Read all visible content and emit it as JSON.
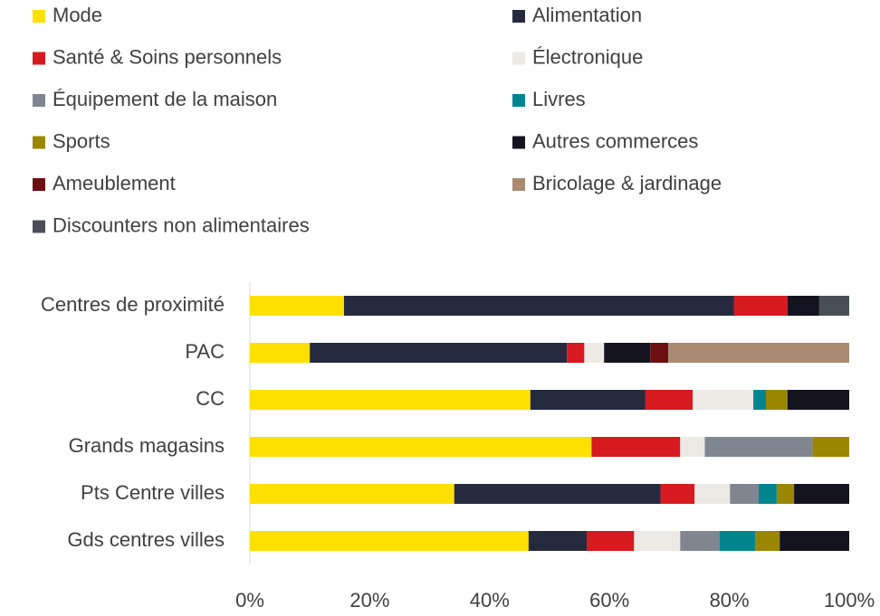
{
  "chart_data": {
    "type": "stacked_barh",
    "categories": [
      "Centres de proximité",
      "PAC",
      "CC",
      "Grands magasins",
      "Pts Centre villes",
      "Gds centres villes"
    ],
    "series": [
      {
        "name": "Mode",
        "color": "#ffe000",
        "values": [
          15.7,
          10.0,
          46.8,
          57.0,
          34.1,
          46.5
        ]
      },
      {
        "name": "Alimentation",
        "color": "#262a3f",
        "values": [
          65.1,
          42.9,
          19.2,
          null,
          34.4,
          9.7
        ]
      },
      {
        "name": "Santé & Soins personnels",
        "color": "#d71920",
        "values": [
          8.9,
          2.9,
          7.9,
          14.8,
          5.7,
          7.9
        ]
      },
      {
        "name": "Électronique",
        "color": "#ede9e4",
        "values": [
          null,
          3.3,
          10.1,
          4.1,
          5.9,
          7.7
        ]
      },
      {
        "name": "Équipement de la maison",
        "color": "#7f8690",
        "values": [
          null,
          null,
          null,
          18.0,
          4.8,
          6.6
        ]
      },
      {
        "name": "Livres",
        "color": "#00858f",
        "values": [
          null,
          null,
          2.1,
          null,
          3.0,
          5.9
        ]
      },
      {
        "name": "Sports",
        "color": "#9b8600",
        "values": [
          null,
          null,
          3.6,
          6.1,
          2.9,
          4.1
        ]
      },
      {
        "name": "Autres commerces",
        "color": "#141420",
        "values": [
          5.3,
          7.7,
          10.3,
          null,
          9.2,
          11.6
        ]
      },
      {
        "name": "Ameublement",
        "color": "#6b0f12",
        "values": [
          null,
          3.0,
          null,
          null,
          null,
          null
        ]
      },
      {
        "name": "Bricolage & jardinage",
        "color": "#a98a70",
        "values": [
          null,
          30.2,
          null,
          null,
          null,
          null
        ]
      },
      {
        "name": "Discounters non alimentaires",
        "color": "#4a4f57",
        "values": [
          5.0,
          null,
          null,
          null,
          null,
          null
        ]
      }
    ],
    "xlim": [
      0,
      100
    ],
    "xticks": [
      {
        "value": 0,
        "label": "0%"
      },
      {
        "value": 20,
        "label": "20%"
      },
      {
        "value": 40,
        "label": "40%"
      },
      {
        "value": 60,
        "label": "60%"
      },
      {
        "value": 80,
        "label": "80%"
      },
      {
        "value": 100,
        "label": "100%"
      }
    ],
    "grid": false
  }
}
